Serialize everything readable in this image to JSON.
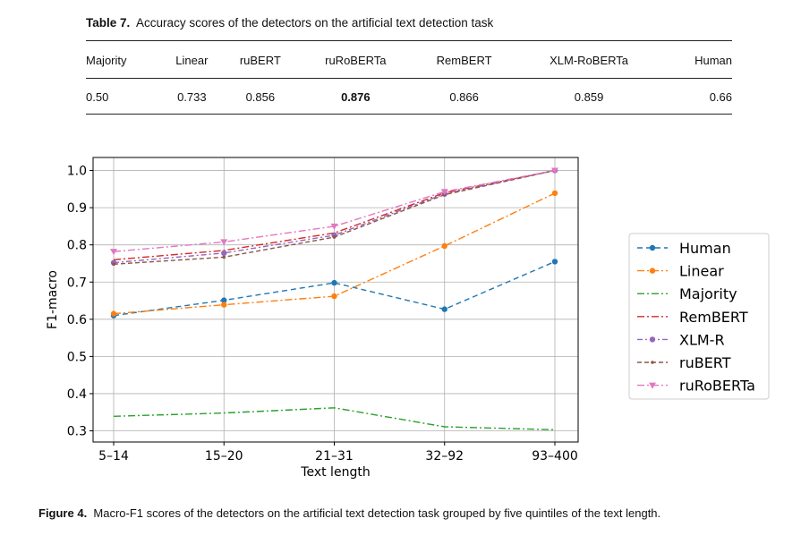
{
  "table": {
    "label": "Table 7.",
    "caption": "Accuracy scores of the detectors on the artificial text detection task",
    "columns": [
      "Majority",
      "Linear",
      "ruBERT",
      "ruRoBERTa",
      "RemBERT",
      "XLM-RoBERTa",
      "Human"
    ],
    "values": [
      "0.50",
      "0.733",
      "0.856",
      "0.876",
      "0.866",
      "0.859",
      "0.66"
    ],
    "best_column": "ruRoBERTa"
  },
  "figure": {
    "label": "Figure 4.",
    "caption": "Macro-F1 scores of the detectors on the artificial text detection task grouped by five quintiles of the text length."
  },
  "chart_data": {
    "type": "line",
    "xlabel": "Text length",
    "ylabel": "F1-macro",
    "categories": [
      "5–14",
      "15–20",
      "21–31",
      "32–92",
      "93–400"
    ],
    "ylim": [
      0.27,
      1.035
    ],
    "yticks": [
      "0.3",
      "0.4",
      "0.5",
      "0.6",
      "0.7",
      "0.8",
      "0.9",
      "1.0"
    ],
    "grid": true,
    "legend_position": "right",
    "series": [
      {
        "name": "Human",
        "color": "#1f77b4",
        "dash": "6,4",
        "marker": "circle",
        "values": [
          0.61,
          0.651,
          0.698,
          0.627,
          0.755
        ]
      },
      {
        "name": "Linear",
        "color": "#ff7f0e",
        "dash": "8,3,2,3",
        "marker": "circle",
        "values": [
          0.615,
          0.639,
          0.662,
          0.797,
          0.939
        ]
      },
      {
        "name": "Majority",
        "color": "#2ca02c",
        "dash": "8,3,2,3",
        "marker": "none",
        "values": [
          0.339,
          0.348,
          0.362,
          0.311,
          0.303
        ]
      },
      {
        "name": "RemBERT",
        "color": "#d62728",
        "dash": "8,3,2,3",
        "marker": "none",
        "values": [
          0.76,
          0.785,
          0.832,
          0.94,
          1.0
        ]
      },
      {
        "name": "XLM-R",
        "color": "#9467bd",
        "dash": "6,3,2,3",
        "marker": "circle",
        "values": [
          0.752,
          0.778,
          0.826,
          0.937,
          1.0
        ]
      },
      {
        "name": "ruBERT",
        "color": "#8c564b",
        "dash": "5,3",
        "marker": "dot",
        "values": [
          0.748,
          0.767,
          0.821,
          0.935,
          1.0
        ]
      },
      {
        "name": "ruRoBERTa",
        "color": "#e377c2",
        "dash": "8,3,2,3",
        "marker": "triangle",
        "values": [
          0.782,
          0.808,
          0.85,
          0.943,
          1.0
        ]
      }
    ]
  }
}
